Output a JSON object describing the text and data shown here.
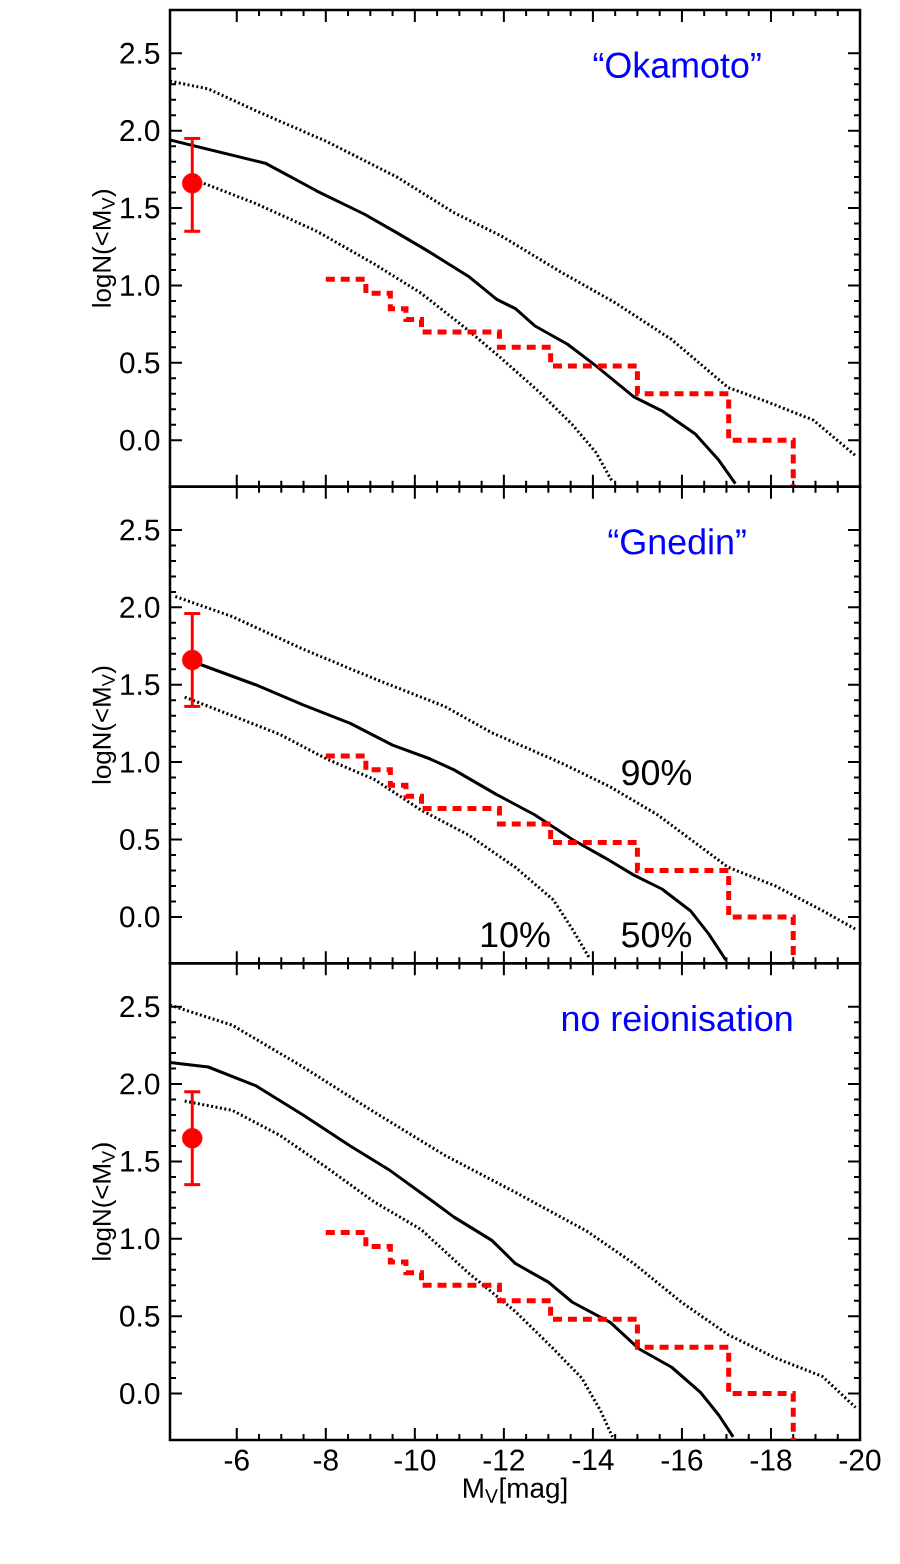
{
  "chart_data": [
    {
      "type": "line",
      "title": "“Okamoto”",
      "ylabel": "logN(<M$_{V}$)",
      "xlim": [
        -4.5,
        -20
      ],
      "ylim": [
        -0.3,
        2.78
      ],
      "xticks": [
        -6,
        -8,
        -10,
        -12,
        -14,
        -16,
        -18,
        -20
      ],
      "yticks": [
        {
          "value": 0,
          "label": "0.0"
        },
        0.5,
        {
          "value": 1,
          "label": "1.0"
        },
        1.5,
        {
          "value": 2,
          "label": "2.0"
        },
        2.5
      ],
      "tick_labels": "y",
      "series": [
        {
          "color": "#000000",
          "line_style": "dotted",
          "x": [
            -4.5,
            -5.36,
            -6.42,
            -8.02,
            -9.6,
            -10.88,
            -11.94,
            -13.32,
            -14.49,
            -15.77,
            -17.04,
            -17.9,
            -18.95,
            -19.9
          ],
          "values": [
            2.32,
            2.27,
            2.13,
            1.93,
            1.7,
            1.47,
            1.32,
            1.08,
            0.89,
            0.65,
            0.34,
            0.25,
            0.13,
            -0.1
          ]
        },
        {
          "color": "#000000",
          "line_style": "solid",
          "x": [
            -4.5,
            -6.64,
            -7.8,
            -8.87,
            -9.6,
            -10.25,
            -11.2,
            -11.84,
            -12.26,
            -12.69,
            -13.43,
            -14.07,
            -14.92,
            -15.55,
            -16.3,
            -16.83,
            -17.2
          ],
          "values": [
            1.94,
            1.79,
            1.61,
            1.46,
            1.34,
            1.23,
            1.06,
            0.91,
            0.85,
            0.74,
            0.62,
            0.48,
            0.28,
            0.19,
            0.04,
            -0.13,
            -0.28
          ]
        },
        {
          "color": "#000000",
          "line_style": "dotted",
          "x": [
            -5.26,
            -6.42,
            -7.8,
            -9.08,
            -10.14,
            -11.2,
            -11.94,
            -12.8,
            -13.54,
            -14.07,
            -14.44
          ],
          "values": [
            1.66,
            1.53,
            1.35,
            1.14,
            0.95,
            0.71,
            0.53,
            0.31,
            0.1,
            -0.08,
            -0.27
          ]
        },
        {
          "type": "step",
          "color": "#ff0000",
          "line_style": "dashed",
          "x": [
            -8.0,
            -8.9,
            -9.45,
            -9.8,
            -10.15,
            -11.9,
            -13.05,
            -15.0,
            -17.05,
            -18.5
          ],
          "values": [
            1.04,
            0.95,
            0.85,
            0.78,
            0.7,
            0.6,
            0.48,
            0.3,
            0.0,
            -0.3
          ]
        },
        {
          "type": "scatter",
          "color": "#ff0000",
          "marker": "circle",
          "x": [
            -5
          ],
          "values": [
            1.66
          ],
          "errors": [
            [
              1.35,
              1.95
            ]
          ]
        }
      ]
    },
    {
      "type": "line",
      "title": "“Gnedin”",
      "ylabel": "logN(<M$_{V}$)",
      "xlim": [
        -4.5,
        -20
      ],
      "ylim": [
        -0.3,
        2.78
      ],
      "xticks": [
        -6,
        -8,
        -10,
        -12,
        -14,
        -16,
        -18,
        -20
      ],
      "yticks": [
        {
          "value": 0,
          "label": "0.0"
        },
        0.5,
        {
          "value": 1,
          "label": "1.0"
        },
        1.5,
        {
          "value": 2,
          "label": "2.0"
        },
        2.5
      ],
      "tick_labels": "y",
      "annotations": [
        "90%",
        "10%",
        "50%"
      ],
      "series": [
        {
          "color": "#000000",
          "line_style": "dotted",
          "x": [
            -4.62,
            -5.9,
            -7.49,
            -9.08,
            -10.67,
            -11.73,
            -13.32,
            -14.39,
            -15.45,
            -17.04,
            -18.1,
            -19.16,
            -19.9
          ],
          "values": [
            2.07,
            1.94,
            1.73,
            1.54,
            1.36,
            1.19,
            0.99,
            0.84,
            0.66,
            0.32,
            0.2,
            0.04,
            -0.08
          ]
        },
        {
          "color": "#000000",
          "line_style": "solid",
          "x": [
            -5,
            -6.42,
            -7.49,
            -8.55,
            -9.5,
            -10.35,
            -10.88,
            -11.84,
            -12.69,
            -13.54,
            -14.28,
            -14.92,
            -15.55,
            -16.19,
            -16.6,
            -16.99
          ],
          "values": [
            1.65,
            1.5,
            1.37,
            1.25,
            1.11,
            1.02,
            0.95,
            0.79,
            0.66,
            0.5,
            0.38,
            0.27,
            0.18,
            0.04,
            -0.11,
            -0.28
          ]
        },
        {
          "color": "#000000",
          "line_style": "dotted",
          "x": [
            -4.83,
            -5.9,
            -6.96,
            -8.02,
            -9.08,
            -10.14,
            -11.2,
            -12.26,
            -13.11,
            -13.54,
            -13.91
          ],
          "values": [
            1.42,
            1.3,
            1.18,
            1.02,
            0.89,
            0.69,
            0.53,
            0.32,
            0.11,
            -0.08,
            -0.26
          ]
        },
        {
          "type": "step",
          "color": "#ff0000",
          "line_style": "dashed",
          "x": [
            -8.0,
            -8.9,
            -9.45,
            -9.8,
            -10.15,
            -11.9,
            -13.05,
            -15.0,
            -17.05,
            -18.5
          ],
          "values": [
            1.04,
            0.95,
            0.85,
            0.78,
            0.7,
            0.6,
            0.48,
            0.3,
            0.0,
            -0.3
          ]
        },
        {
          "type": "scatter",
          "color": "#ff0000",
          "marker": "circle",
          "x": [
            -5
          ],
          "values": [
            1.66
          ],
          "errors": [
            [
              1.36,
              1.96
            ]
          ]
        }
      ]
    },
    {
      "type": "line",
      "title": "no reionisation",
      "xlabel": "M$_{V}$[mag]",
      "ylabel": "logN(<M$_{V}$)",
      "xlim": [
        -4.5,
        -20
      ],
      "ylim": [
        -0.3,
        2.78
      ],
      "xticks": [
        -6,
        -8,
        -10,
        -12,
        -14,
        -16,
        -18,
        -20
      ],
      "yticks": [
        {
          "value": 0,
          "label": "0.0"
        },
        0.5,
        {
          "value": 1,
          "label": "1.0"
        },
        1.5,
        {
          "value": 2,
          "label": "2.0"
        },
        2.5
      ],
      "series": [
        {
          "color": "#000000",
          "line_style": "dotted",
          "x": [
            -4.5,
            -5.9,
            -7.49,
            -9.08,
            -10.67,
            -12.26,
            -13.86,
            -14.92,
            -15.99,
            -17.04,
            -18.1,
            -19.16,
            -19.9
          ],
          "values": [
            2.51,
            2.38,
            2.11,
            1.82,
            1.54,
            1.3,
            1.05,
            0.84,
            0.59,
            0.38,
            0.23,
            0.11,
            -0.09
          ]
        },
        {
          "color": "#000000",
          "line_style": "solid",
          "x": [
            -4.5,
            -5.36,
            -6.42,
            -7.49,
            -8.55,
            -9.4,
            -10.46,
            -10.88,
            -11.73,
            -12.26,
            -13.0,
            -13.54,
            -14.39,
            -15.03,
            -15.77,
            -16.41,
            -16.83,
            -17.15
          ],
          "values": [
            2.14,
            2.11,
            1.99,
            1.8,
            1.6,
            1.45,
            1.23,
            1.14,
            0.99,
            0.84,
            0.72,
            0.59,
            0.46,
            0.29,
            0.17,
            0.01,
            -0.14,
            -0.28
          ]
        },
        {
          "color": "#000000",
          "line_style": "dotted",
          "x": [
            -4.83,
            -5.9,
            -6.96,
            -8.02,
            -9.08,
            -10.14,
            -11.2,
            -12.26,
            -13.11,
            -13.75,
            -14.17,
            -14.44
          ],
          "values": [
            1.89,
            1.83,
            1.67,
            1.46,
            1.24,
            1.06,
            0.78,
            0.53,
            0.29,
            0.1,
            -0.11,
            -0.28
          ]
        },
        {
          "type": "step",
          "color": "#ff0000",
          "line_style": "dashed",
          "x": [
            -8.0,
            -8.9,
            -9.45,
            -9.8,
            -10.15,
            -11.9,
            -13.05,
            -15.0,
            -17.05,
            -18.5
          ],
          "values": [
            1.04,
            0.95,
            0.85,
            0.78,
            0.7,
            0.6,
            0.48,
            0.3,
            0.0,
            -0.3
          ]
        },
        {
          "type": "scatter",
          "color": "#ff0000",
          "marker": "circle",
          "x": [
            -5
          ],
          "values": [
            1.65
          ],
          "errors": [
            [
              1.35,
              1.95
            ]
          ]
        }
      ]
    }
  ]
}
